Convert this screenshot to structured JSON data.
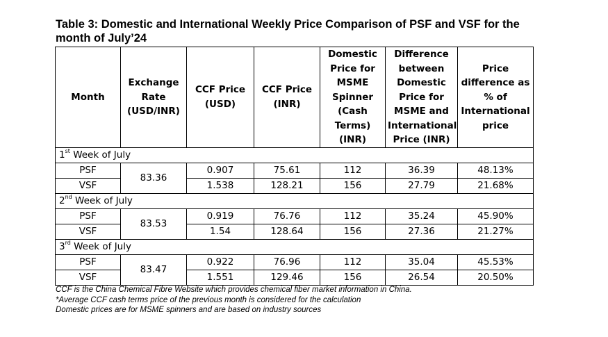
{
  "title": "Table 3: Domestic and International Weekly Price Comparison of PSF and VSF for the month of July’24",
  "headers": {
    "month": "Month",
    "exchange_rate": "Exchange Rate (USD/INR)",
    "ccf_usd": "CCF Price (USD)",
    "ccf_inr": "CCF Price (INR)",
    "domestic": "Domestic Price for MSME Spinner (Cash Terms) (INR)",
    "difference": "Difference between Domestic Price for MSME and International Price (INR)",
    "pct": "Price difference as % of International price"
  },
  "weeks": [
    {
      "ordinal": "1",
      "suffix": "st",
      "label_rest": " Week of July",
      "exchange_rate": "83.36",
      "rows": [
        {
          "product": "PSF",
          "ccf_usd": "0.907",
          "ccf_inr": "75.61",
          "domestic": "112",
          "difference": "36.39",
          "pct": "48.13%"
        },
        {
          "product": "VSF",
          "ccf_usd": "1.538",
          "ccf_inr": "128.21",
          "domestic": "156",
          "difference": "27.79",
          "pct": "21.68%"
        }
      ]
    },
    {
      "ordinal": "2",
      "suffix": "nd",
      "label_rest": " Week of July",
      "exchange_rate": "83.53",
      "rows": [
        {
          "product": "PSF",
          "ccf_usd": "0.919",
          "ccf_inr": "76.76",
          "domestic": "112",
          "difference": "35.24",
          "pct": "45.90%"
        },
        {
          "product": "VSF",
          "ccf_usd": "1.54",
          "ccf_inr": "128.64",
          "domestic": "156",
          "difference": "27.36",
          "pct": "21.27%"
        }
      ]
    },
    {
      "ordinal": "3",
      "suffix": "rd",
      "label_rest": " Week of July",
      "exchange_rate": "83.47",
      "rows": [
        {
          "product": "PSF",
          "ccf_usd": "0.922",
          "ccf_inr": "76.96",
          "domestic": "112",
          "difference": "35.04",
          "pct": "45.53%"
        },
        {
          "product": "VSF",
          "ccf_usd": "1.551",
          "ccf_inr": "129.46",
          "domestic": "156",
          "difference": "26.54",
          "pct": "20.50%"
        }
      ]
    }
  ],
  "notes": [
    "CCF is the China Chemical Fibre Website which provides chemical fiber market information in China.",
    "*Average CCF cash terms price of the previous month is considered for the calculation",
    "Domestic prices are for MSME spinners and are based on industry sources"
  ]
}
